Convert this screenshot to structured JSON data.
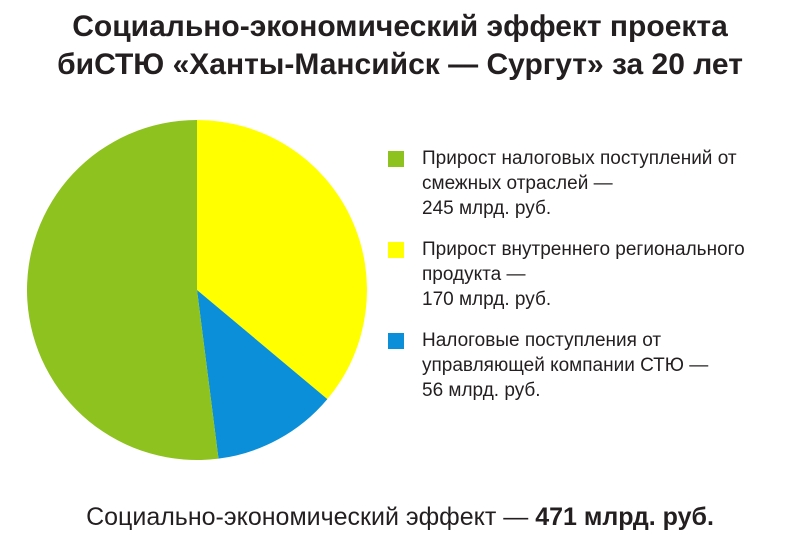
{
  "chart_data": {
    "type": "pie",
    "title": "Социально-экономический эффект проекта\nбиСТЮ «Ханты-Мансийск — Сургут» за 20 лет",
    "series": [
      {
        "name": "Прирост налоговых поступлений от смежных отраслей —",
        "color": "#8dc21f",
        "values": [
          245
        ],
        "value_labels": [
          "245 млрд. руб."
        ]
      },
      {
        "name": "Прирост внутреннего регионального продукта —",
        "color": "#ffff00",
        "values": [
          170
        ],
        "value_labels": [
          "170 млрд. руб."
        ]
      },
      {
        "name": "Налоговые поступления от управляющей компании СТЮ —",
        "color": "#0a8fd8",
        "values": [
          56
        ],
        "value_labels": [
          "56 млрд. руб."
        ]
      }
    ],
    "slice_order": [
      1,
      2,
      0
    ],
    "footer": {
      "text": "Социально-экономический эффект —",
      "total_label": "471 млрд. руб."
    }
  }
}
